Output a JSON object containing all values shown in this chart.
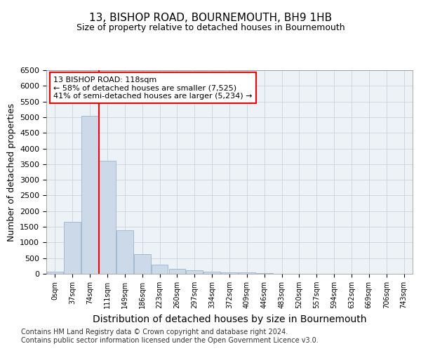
{
  "title": "13, BISHOP ROAD, BOURNEMOUTH, BH9 1HB",
  "subtitle": "Size of property relative to detached houses in Bournemouth",
  "xlabel": "Distribution of detached houses by size in Bournemouth",
  "ylabel": "Number of detached properties",
  "bar_values": [
    75,
    1650,
    5050,
    3600,
    1400,
    620,
    295,
    150,
    105,
    65,
    52,
    52,
    30,
    8,
    5,
    2,
    2,
    2,
    1,
    1,
    0
  ],
  "bar_color": "#ccd9e8",
  "bar_edge_color": "#9ab4cc",
  "x_labels": [
    "0sqm",
    "37sqm",
    "74sqm",
    "111sqm",
    "149sqm",
    "186sqm",
    "223sqm",
    "260sqm",
    "297sqm",
    "334sqm",
    "372sqm",
    "409sqm",
    "446sqm",
    "483sqm",
    "520sqm",
    "557sqm",
    "594sqm",
    "632sqm",
    "669sqm",
    "706sqm",
    "743sqm"
  ],
  "ylim": [
    0,
    6500
  ],
  "yticks": [
    0,
    500,
    1000,
    1500,
    2000,
    2500,
    3000,
    3500,
    4000,
    4500,
    5000,
    5500,
    6000,
    6500
  ],
  "red_line_x": 3.0,
  "annotation_text": "13 BISHOP ROAD: 118sqm\n← 58% of detached houses are smaller (7,525)\n41% of semi-detached houses are larger (5,234) →",
  "footer_line1": "Contains HM Land Registry data © Crown copyright and database right 2024.",
  "footer_line2": "Contains public sector information licensed under the Open Government Licence v3.0.",
  "background_color": "#edf2f7",
  "grid_color": "#c8d4e0",
  "title_fontsize": 11,
  "subtitle_fontsize": 9,
  "axis_label_fontsize": 9,
  "tick_fontsize": 8,
  "annotation_fontsize": 8,
  "footer_fontsize": 7
}
